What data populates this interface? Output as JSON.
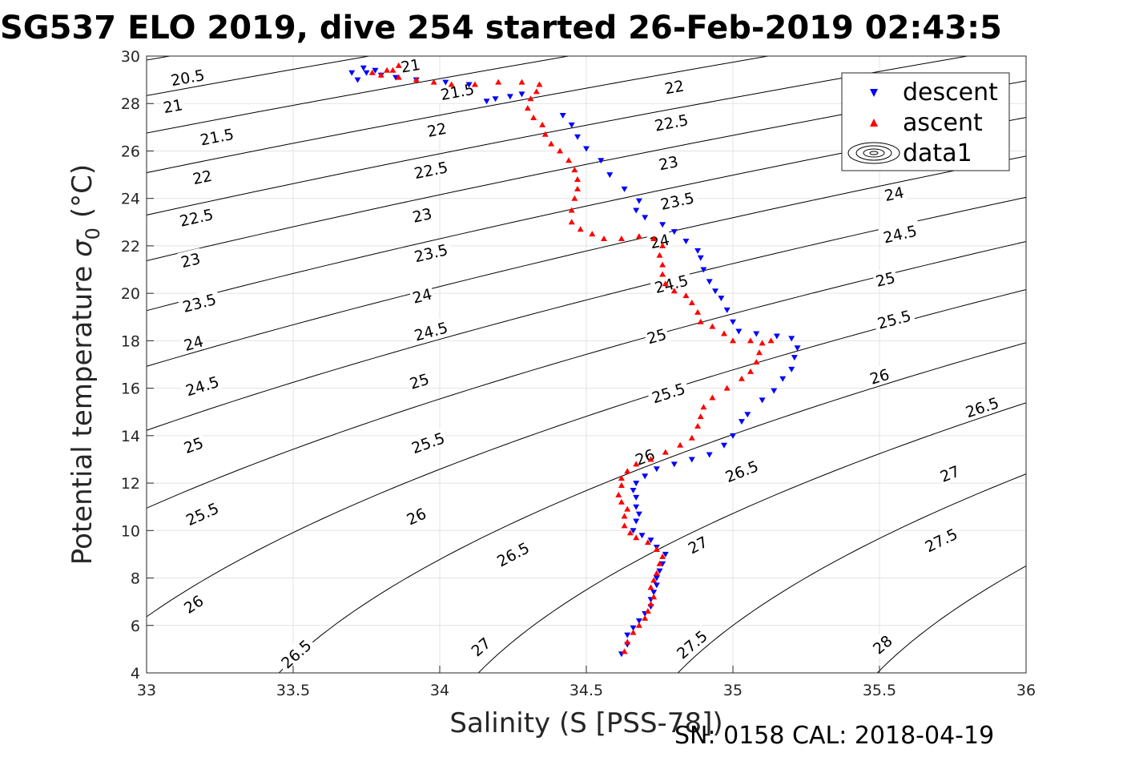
{
  "title": "SG537 ELO 2019, dive 254 started 26-Feb-2019 02:43:5",
  "footer": "SN: 0158  CAL: 2018-04-19",
  "chart_data": {
    "type": "scatter",
    "xlabel": "Salinity (S [PSS-78])",
    "ylabel": "Potential temperature σ 0 (°C)",
    "ylabel_main": "Potential temperature",
    "ylabel_sigma": "σ",
    "ylabel_sub": "0",
    "ylabel_unit": "(°C)",
    "xlim": [
      33,
      36
    ],
    "ylim": [
      4,
      30
    ],
    "xticks": [
      "33",
      "33.5",
      "34",
      "34.5",
      "35",
      "35.5",
      "36"
    ],
    "yticks": [
      "4",
      "6",
      "8",
      "10",
      "12",
      "14",
      "16",
      "18",
      "20",
      "22",
      "24",
      "26",
      "28",
      "30"
    ],
    "grid": true,
    "legend": {
      "position": "top-right",
      "entries": [
        {
          "label": "descent",
          "marker": "triangle-down",
          "color": "#0000ff"
        },
        {
          "label": "ascent",
          "marker": "triangle-up",
          "color": "#ff0000"
        },
        {
          "label": "data1",
          "marker": "contour",
          "color": "#000000"
        }
      ]
    },
    "series": [
      {
        "name": "descent",
        "color": "#0000ff",
        "marker": "triangle-down",
        "points": [
          [
            34.62,
            4.8
          ],
          [
            34.64,
            5.2
          ],
          [
            34.64,
            5.6
          ],
          [
            34.66,
            5.9
          ],
          [
            34.68,
            6.2
          ],
          [
            34.7,
            6.5
          ],
          [
            34.72,
            6.8
          ],
          [
            34.72,
            7.1
          ],
          [
            34.73,
            7.4
          ],
          [
            34.74,
            7.7
          ],
          [
            34.74,
            8.0
          ],
          [
            34.75,
            8.3
          ],
          [
            34.76,
            8.6
          ],
          [
            34.77,
            9.0
          ],
          [
            34.74,
            9.3
          ],
          [
            34.72,
            9.6
          ],
          [
            34.69,
            9.8
          ],
          [
            34.66,
            10.0
          ],
          [
            34.67,
            10.4
          ],
          [
            34.68,
            10.7
          ],
          [
            34.67,
            11.0
          ],
          [
            34.67,
            11.4
          ],
          [
            34.66,
            11.7
          ],
          [
            34.67,
            12.0
          ],
          [
            34.7,
            12.3
          ],
          [
            34.74,
            12.6
          ],
          [
            34.8,
            12.8
          ],
          [
            34.86,
            13.0
          ],
          [
            34.92,
            13.2
          ],
          [
            34.97,
            13.6
          ],
          [
            35.0,
            14.0
          ],
          [
            35.03,
            14.6
          ],
          [
            35.05,
            14.9
          ],
          [
            35.1,
            15.5
          ],
          [
            35.14,
            15.9
          ],
          [
            35.17,
            16.4
          ],
          [
            35.2,
            16.8
          ],
          [
            35.21,
            17.3
          ],
          [
            35.22,
            17.7
          ],
          [
            35.2,
            18.1
          ],
          [
            35.15,
            18.2
          ],
          [
            35.08,
            18.3
          ],
          [
            35.02,
            18.4
          ],
          [
            35.0,
            18.8
          ],
          [
            34.98,
            19.3
          ],
          [
            34.96,
            19.8
          ],
          [
            34.94,
            20.1
          ],
          [
            34.92,
            20.5
          ],
          [
            34.9,
            21.0
          ],
          [
            34.89,
            21.5
          ],
          [
            34.88,
            21.8
          ],
          [
            34.84,
            22.2
          ],
          [
            34.8,
            22.6
          ],
          [
            34.76,
            22.9
          ],
          [
            34.7,
            23.2
          ],
          [
            34.67,
            23.5
          ],
          [
            34.68,
            23.9
          ],
          [
            34.63,
            24.4
          ],
          [
            34.58,
            25.0
          ],
          [
            34.55,
            25.6
          ],
          [
            34.5,
            26.1
          ],
          [
            34.47,
            26.6
          ],
          [
            34.45,
            27.1
          ],
          [
            34.42,
            27.5
          ],
          [
            34.28,
            28.4
          ],
          [
            34.24,
            28.3
          ],
          [
            34.19,
            28.2
          ],
          [
            34.16,
            28.1
          ],
          [
            34.1,
            28.8
          ],
          [
            34.02,
            28.9
          ],
          [
            33.92,
            29.0
          ],
          [
            33.85,
            29.1
          ],
          [
            33.8,
            29.2
          ],
          [
            33.75,
            29.3
          ],
          [
            33.72,
            29.0
          ],
          [
            33.7,
            29.3
          ],
          [
            33.74,
            29.5
          ],
          [
            33.78,
            29.4
          ]
        ]
      },
      {
        "name": "ascent",
        "color": "#ff0000",
        "marker": "triangle-up",
        "points": [
          [
            34.63,
            4.9
          ],
          [
            34.64,
            5.3
          ],
          [
            34.66,
            5.7
          ],
          [
            34.68,
            6.0
          ],
          [
            34.7,
            6.3
          ],
          [
            34.71,
            6.6
          ],
          [
            34.72,
            6.9
          ],
          [
            34.73,
            7.2
          ],
          [
            34.72,
            7.6
          ],
          [
            34.73,
            7.9
          ],
          [
            34.74,
            8.2
          ],
          [
            34.75,
            8.6
          ],
          [
            34.76,
            8.9
          ],
          [
            34.74,
            9.2
          ],
          [
            34.71,
            9.5
          ],
          [
            34.67,
            9.7
          ],
          [
            34.65,
            9.9
          ],
          [
            34.63,
            10.2
          ],
          [
            34.63,
            10.6
          ],
          [
            34.64,
            10.9
          ],
          [
            34.62,
            11.2
          ],
          [
            34.61,
            11.5
          ],
          [
            34.62,
            11.9
          ],
          [
            34.62,
            12.2
          ],
          [
            34.64,
            12.5
          ],
          [
            34.67,
            12.8
          ],
          [
            34.72,
            13.0
          ],
          [
            34.77,
            13.3
          ],
          [
            34.82,
            13.6
          ],
          [
            34.86,
            13.9
          ],
          [
            34.88,
            14.4
          ],
          [
            34.89,
            14.8
          ],
          [
            34.9,
            15.2
          ],
          [
            34.93,
            15.6
          ],
          [
            34.98,
            16.0
          ],
          [
            35.03,
            16.4
          ],
          [
            35.06,
            16.7
          ],
          [
            35.08,
            17.1
          ],
          [
            35.09,
            17.5
          ],
          [
            35.1,
            17.9
          ],
          [
            35.13,
            18.0
          ],
          [
            35.06,
            18.0
          ],
          [
            35.0,
            18.0
          ],
          [
            34.97,
            18.3
          ],
          [
            34.93,
            18.6
          ],
          [
            34.89,
            18.8
          ],
          [
            34.88,
            19.2
          ],
          [
            34.86,
            19.6
          ],
          [
            34.84,
            19.9
          ],
          [
            34.8,
            20.1
          ],
          [
            34.77,
            20.4
          ],
          [
            34.76,
            20.8
          ],
          [
            34.76,
            21.2
          ],
          [
            34.75,
            21.6
          ],
          [
            34.76,
            22.0
          ],
          [
            34.73,
            22.3
          ],
          [
            34.68,
            22.4
          ],
          [
            34.62,
            22.3
          ],
          [
            34.56,
            22.3
          ],
          [
            34.52,
            22.5
          ],
          [
            34.48,
            22.7
          ],
          [
            34.45,
            23.0
          ],
          [
            34.45,
            23.5
          ],
          [
            34.46,
            24.0
          ],
          [
            34.47,
            24.4
          ],
          [
            34.47,
            24.8
          ],
          [
            34.46,
            25.2
          ],
          [
            34.44,
            25.6
          ],
          [
            34.41,
            26.0
          ],
          [
            34.38,
            26.3
          ],
          [
            34.36,
            26.7
          ],
          [
            34.35,
            27.1
          ],
          [
            34.32,
            27.4
          ],
          [
            34.3,
            27.8
          ],
          [
            34.31,
            28.2
          ],
          [
            34.33,
            28.5
          ],
          [
            34.34,
            28.8
          ],
          [
            34.28,
            28.9
          ],
          [
            34.2,
            28.9
          ],
          [
            34.12,
            28.8
          ],
          [
            34.04,
            28.8
          ],
          [
            33.98,
            28.9
          ],
          [
            33.92,
            29.0
          ],
          [
            33.86,
            29.1
          ],
          [
            33.8,
            29.2
          ],
          [
            33.77,
            29.3
          ],
          [
            33.82,
            29.4
          ],
          [
            33.86,
            29.6
          ],
          [
            33.84,
            29.4
          ]
        ]
      }
    ],
    "contours": {
      "name": "data1",
      "levels": [
        "20.5",
        "21",
        "21.5",
        "22",
        "22.5",
        "23",
        "23.5",
        "24",
        "24.5",
        "25",
        "25.5",
        "26",
        "26.5",
        "27",
        "27.5",
        "28"
      ],
      "labels": [
        {
          "text": "20.5",
          "x": 33.14,
          "y": 29.1
        },
        {
          "text": "21",
          "x": 33.09,
          "y": 27.9
        },
        {
          "text": "21.5",
          "x": 33.24,
          "y": 26.6
        },
        {
          "text": "22",
          "x": 33.19,
          "y": 24.9
        },
        {
          "text": "22.5",
          "x": 33.17,
          "y": 23.2
        },
        {
          "text": "23",
          "x": 33.15,
          "y": 21.4
        },
        {
          "text": "23.5",
          "x": 33.18,
          "y": 19.6
        },
        {
          "text": "24",
          "x": 33.16,
          "y": 17.9
        },
        {
          "text": "24.5",
          "x": 33.19,
          "y": 16.1
        },
        {
          "text": "25",
          "x": 33.16,
          "y": 13.6
        },
        {
          "text": "25.5",
          "x": 33.19,
          "y": 10.7
        },
        {
          "text": "26",
          "x": 33.16,
          "y": 6.9
        },
        {
          "text": "26.5",
          "x": 33.51,
          "y": 4.8
        },
        {
          "text": "21",
          "x": 33.9,
          "y": 29.6
        },
        {
          "text": "21.5",
          "x": 34.06,
          "y": 28.5
        },
        {
          "text": "22",
          "x": 33.99,
          "y": 26.9
        },
        {
          "text": "22.5",
          "x": 33.97,
          "y": 25.2
        },
        {
          "text": "23",
          "x": 33.94,
          "y": 23.3
        },
        {
          "text": "23.5",
          "x": 33.97,
          "y": 21.7
        },
        {
          "text": "24",
          "x": 33.94,
          "y": 19.9
        },
        {
          "text": "24.5",
          "x": 33.97,
          "y": 18.4
        },
        {
          "text": "25",
          "x": 33.93,
          "y": 16.3
        },
        {
          "text": "25.5",
          "x": 33.96,
          "y": 13.7
        },
        {
          "text": "26",
          "x": 33.92,
          "y": 10.6
        },
        {
          "text": "26.5",
          "x": 34.25,
          "y": 9.0
        },
        {
          "text": "27",
          "x": 34.14,
          "y": 5.1
        },
        {
          "text": "22",
          "x": 34.8,
          "y": 28.7
        },
        {
          "text": "22.5",
          "x": 34.79,
          "y": 27.2
        },
        {
          "text": "23",
          "x": 34.78,
          "y": 25.5
        },
        {
          "text": "23.5",
          "x": 34.81,
          "y": 23.9
        },
        {
          "text": "24",
          "x": 34.75,
          "y": 22.2
        },
        {
          "text": "24.5",
          "x": 34.79,
          "y": 20.4
        },
        {
          "text": "25",
          "x": 34.74,
          "y": 18.2
        },
        {
          "text": "25.5",
          "x": 34.78,
          "y": 15.8
        },
        {
          "text": "26",
          "x": 34.7,
          "y": 13.1
        },
        {
          "text": "26.5",
          "x": 35.03,
          "y": 12.5
        },
        {
          "text": "27",
          "x": 34.88,
          "y": 9.4
        },
        {
          "text": "27.5",
          "x": 34.86,
          "y": 5.2
        },
        {
          "text": "24",
          "x": 35.55,
          "y": 24.2
        },
        {
          "text": "24.5",
          "x": 35.57,
          "y": 22.5
        },
        {
          "text": "25",
          "x": 35.52,
          "y": 20.6
        },
        {
          "text": "25.5",
          "x": 35.55,
          "y": 18.9
        },
        {
          "text": "26",
          "x": 35.5,
          "y": 16.5
        },
        {
          "text": "26.5",
          "x": 35.85,
          "y": 15.2
        },
        {
          "text": "27",
          "x": 35.74,
          "y": 12.4
        },
        {
          "text": "27.5",
          "x": 35.71,
          "y": 9.6
        },
        {
          "text": "28",
          "x": 35.51,
          "y": 5.2
        }
      ]
    }
  }
}
